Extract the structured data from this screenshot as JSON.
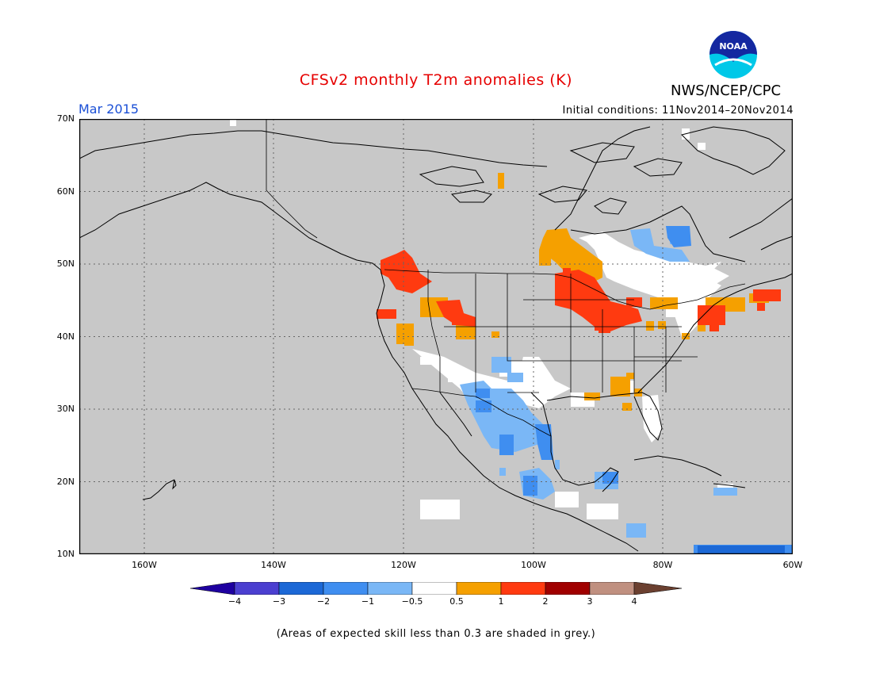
{
  "title": "CFSv2 monthly T2m anomalies (K)",
  "agency": "NWS/NCEP/CPC",
  "logo_text": "NOAA",
  "valid_period": "Mar 2015",
  "initial_conditions": "Initial conditions: 11Nov2014–20Nov2014",
  "footnote": "(Areas of expected skill less than 0.3 are shaded in grey.)",
  "lat_labels": [
    "70N",
    "60N",
    "50N",
    "40N",
    "30N",
    "20N",
    "10N"
  ],
  "lon_labels": [
    "160W",
    "140W",
    "120W",
    "100W",
    "80W",
    "60W"
  ],
  "colorbar": {
    "labels": [
      "−4",
      "−3",
      "−2",
      "−1",
      "−0.5",
      "0.5",
      "1",
      "2",
      "3",
      "4"
    ],
    "colors": [
      "#1e00a0",
      "#4b3fd0",
      "#1c68d6",
      "#3f8ef0",
      "#7ab7f6",
      "#ffffff",
      "#f5a000",
      "#ff3a10",
      "#a00000",
      "#c09080",
      "#6b4030"
    ]
  },
  "colors": {
    "no_skill": "#c8c8c8",
    "land_boundary": "#000000",
    "title": "#e60000",
    "period": "#1a4fd6"
  }
}
